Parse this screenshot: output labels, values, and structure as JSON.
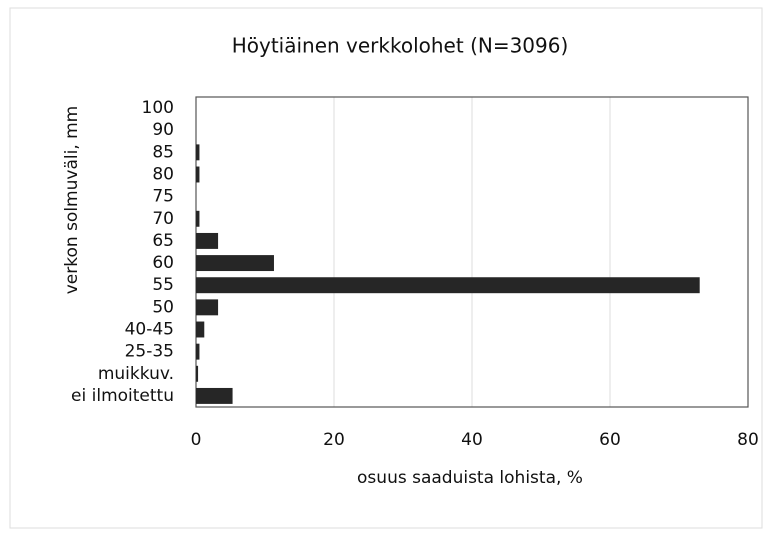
{
  "chart_data": {
    "type": "hbar",
    "title": "Höytiäinen verkkolohet (N=3096)",
    "x_label": "osuus saaduista lohista, %",
    "y_label": "verkon solmuväli, mm",
    "categories": [
      "100",
      "90",
      "85",
      "80",
      "75",
      "70",
      "65",
      "60",
      "55",
      "50",
      "40-45",
      "25-35",
      "muikkuv.",
      "ei ilmoitettu"
    ],
    "values": [
      0,
      0,
      0.5,
      0.5,
      0,
      0.5,
      3.2,
      11.3,
      73,
      3.2,
      1.2,
      0.5,
      0.3,
      5.3
    ],
    "color": "#262626",
    "xlim": [
      0,
      80
    ],
    "xticks": [
      0,
      20,
      40,
      60,
      80
    ],
    "grid": true
  }
}
